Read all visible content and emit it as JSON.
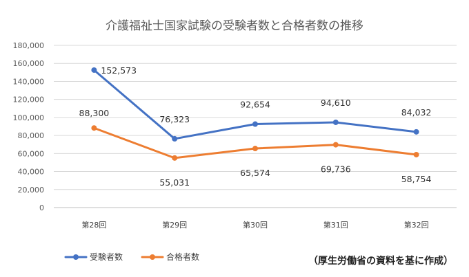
{
  "chart_data": {
    "type": "line",
    "title": "介護福祉士国家試験の受験者数と合格者数の推移",
    "categories": [
      "第28回",
      "第29回",
      "第30回",
      "第31回",
      "第32回"
    ],
    "series": [
      {
        "name": "受験者数",
        "color": "#4472C4",
        "values": [
          152573,
          76323,
          92654,
          94610,
          84032
        ],
        "labels": [
          "152,573",
          "76,323",
          "92,654",
          "94,610",
          "84,032"
        ]
      },
      {
        "name": "合格者数",
        "color": "#ED7D31",
        "values": [
          88300,
          55031,
          65574,
          69736,
          58754
        ],
        "labels": [
          "88,300",
          "55,031",
          "65,574",
          "69,736",
          "58,754"
        ]
      }
    ],
    "ylim": [
      0,
      180000
    ],
    "yticks": [
      "0",
      "20,000",
      "40,000",
      "60,000",
      "80,000",
      "100,000",
      "120,000",
      "140,000",
      "160,000",
      "180,000"
    ],
    "grid": true,
    "legend_position": "bottom-left"
  },
  "source_note": "（厚生労働省の資料を基に作成）"
}
